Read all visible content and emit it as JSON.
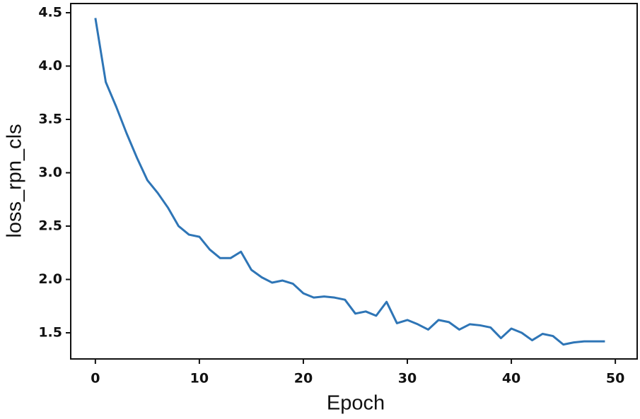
{
  "chart_data": {
    "type": "line",
    "xlabel": "Epoch",
    "ylabel": "loss_rpn_cls",
    "x": [
      0,
      1,
      2,
      3,
      4,
      5,
      6,
      7,
      8,
      9,
      10,
      11,
      12,
      13,
      14,
      15,
      16,
      17,
      18,
      19,
      20,
      21,
      22,
      23,
      24,
      25,
      26,
      27,
      28,
      29,
      30,
      31,
      32,
      33,
      34,
      35,
      36,
      37,
      38,
      39,
      40,
      41,
      42,
      43,
      44,
      45,
      46,
      47,
      48,
      49
    ],
    "series": [
      {
        "name": "loss_rpn_cls",
        "color": "#2e75b6",
        "values": [
          4.45,
          3.85,
          3.62,
          3.37,
          3.14,
          2.93,
          2.81,
          2.67,
          2.5,
          2.42,
          2.4,
          2.28,
          2.2,
          2.2,
          2.26,
          2.09,
          2.02,
          1.97,
          1.99,
          1.96,
          1.87,
          1.83,
          1.84,
          1.83,
          1.81,
          1.68,
          1.7,
          1.66,
          1.79,
          1.59,
          1.62,
          1.58,
          1.53,
          1.62,
          1.6,
          1.53,
          1.58,
          1.57,
          1.55,
          1.45,
          1.54,
          1.5,
          1.43,
          1.49,
          1.47,
          1.39,
          1.41,
          1.42,
          1.42,
          1.42
        ]
      }
    ],
    "xlim": [
      -2.37,
      52.1
    ],
    "ylim": [
      1.255,
      4.586
    ],
    "xticks": [
      0,
      10,
      20,
      30,
      40,
      50
    ],
    "yticks": [
      1.5,
      {
        "value": 2,
        "label": "2.0"
      },
      2.5,
      {
        "value": 3,
        "label": "3.0"
      },
      3.5,
      {
        "value": 4,
        "label": "4.0"
      },
      4.5
    ],
    "grid": false
  }
}
